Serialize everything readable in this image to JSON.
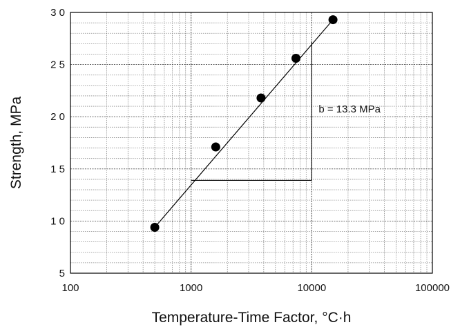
{
  "chart_data": {
    "type": "scatter",
    "xlabel": "Temperature-Time Factor, °C·h",
    "ylabel": "Strength, MPa",
    "xscale": "log",
    "xlim": [
      100,
      100000
    ],
    "ylim": [
      5,
      30
    ],
    "x_tick_labels": [
      "100",
      "1000",
      "10000",
      "100000"
    ],
    "x_tick_values": [
      100,
      1000,
      10000,
      100000
    ],
    "y_tick_labels": [
      "5",
      "1 0",
      "1 5",
      "2 0",
      "2 5",
      "3 0"
    ],
    "y_tick_values": [
      5,
      10,
      15,
      20,
      25,
      30
    ],
    "grid": true,
    "series": [
      {
        "points": [
          {
            "x": 500,
            "y": 9.4
          },
          {
            "x": 1600,
            "y": 17.1
          },
          {
            "x": 3800,
            "y": 21.8
          },
          {
            "x": 7400,
            "y": 25.6
          },
          {
            "x": 15000,
            "y": 29.3
          }
        ]
      }
    ],
    "fit_line": {
      "x": [
        500,
        15000
      ],
      "y": [
        9.4,
        29.3
      ]
    },
    "slope_triangle": {
      "x": [
        1000,
        10000
      ],
      "y": [
        13.9,
        27.2
      ]
    },
    "annotation": "b = 13.3 MPa"
  }
}
